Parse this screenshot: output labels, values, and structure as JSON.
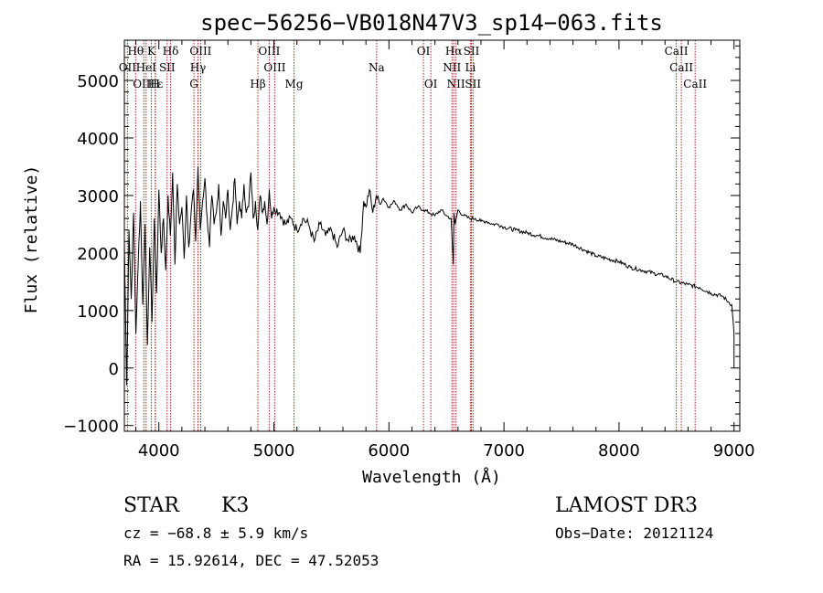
{
  "chart_data": {
    "type": "line",
    "title": "spec−56256−VB018N47V3_sp14−063.fits",
    "xlabel": "Wavelength (Å)",
    "ylabel": "Flux (relative)",
    "xlim": [
      3700,
      9050
    ],
    "ylim": [
      -1100,
      5700
    ],
    "xticks": [
      4000,
      5000,
      6000,
      7000,
      8000,
      9000
    ],
    "xtick_labels": [
      "4000",
      "5000",
      "6000",
      "7000",
      "8000",
      "9000"
    ],
    "yticks": [
      -1000,
      0,
      1000,
      2000,
      3000,
      4000,
      5000
    ],
    "ytick_labels": [
      "−1000",
      "0",
      "1000",
      "2000",
      "3000",
      "4000",
      "5000"
    ],
    "series": [
      {
        "name": "spectrum",
        "x": [
          3700,
          3720,
          3740,
          3760,
          3780,
          3800,
          3820,
          3840,
          3860,
          3880,
          3900,
          3920,
          3940,
          3960,
          3980,
          4000,
          4020,
          4040,
          4060,
          4080,
          4100,
          4120,
          4140,
          4160,
          4180,
          4200,
          4220,
          4240,
          4260,
          4280,
          4300,
          4320,
          4340,
          4360,
          4380,
          4400,
          4420,
          4440,
          4460,
          4480,
          4500,
          4520,
          4540,
          4560,
          4580,
          4600,
          4620,
          4640,
          4660,
          4680,
          4700,
          4720,
          4740,
          4760,
          4780,
          4800,
          4820,
          4840,
          4860,
          4880,
          4900,
          4920,
          4940,
          4960,
          4980,
          5000,
          5050,
          5100,
          5150,
          5200,
          5250,
          5300,
          5350,
          5400,
          5450,
          5500,
          5550,
          5600,
          5650,
          5700,
          5750,
          5780,
          5800,
          5830,
          5860,
          5890,
          5920,
          5950,
          6000,
          6050,
          6100,
          6150,
          6200,
          6250,
          6300,
          6350,
          6400,
          6450,
          6500,
          6540,
          6560,
          6565,
          6575,
          6600,
          6650,
          6700,
          6750,
          6800,
          6850,
          6900,
          6950,
          7000,
          7100,
          7200,
          7300,
          7400,
          7500,
          7600,
          7700,
          7800,
          7900,
          8000,
          8100,
          8200,
          8300,
          8400,
          8500,
          8600,
          8700,
          8800,
          8900,
          8950,
          8980,
          9000
        ],
        "values": [
          2200,
          -300,
          2400,
          1200,
          2700,
          600,
          1800,
          2900,
          1100,
          2500,
          400,
          2100,
          800,
          2600,
          1300,
          3100,
          2000,
          2600,
          1700,
          3000,
          2300,
          3400,
          1800,
          3200,
          2500,
          2800,
          1900,
          3000,
          2100,
          2700,
          3100,
          2200,
          3500,
          2400,
          2900,
          3300,
          2600,
          2100,
          3000,
          2500,
          2700,
          3200,
          2300,
          2900,
          2600,
          3100,
          2400,
          2800,
          3300,
          2500,
          2900,
          2600,
          3200,
          2700,
          2800,
          3400,
          2600,
          2900,
          2400,
          3000,
          2700,
          2900,
          2500,
          3100,
          2600,
          2800,
          2700,
          2500,
          2600,
          2400,
          2600,
          2500,
          2200,
          2500,
          2300,
          2400,
          2100,
          2400,
          2200,
          2300,
          2000,
          2900,
          2800,
          3100,
          2700,
          3000,
          2850,
          2950,
          2800,
          2900,
          2750,
          2850,
          2700,
          2800,
          2750,
          2700,
          2650,
          2750,
          2650,
          2600,
          1800,
          2700,
          2500,
          2750,
          2650,
          2600,
          2600,
          2550,
          2550,
          2500,
          2500,
          2450,
          2400,
          2350,
          2300,
          2250,
          2200,
          2150,
          2050,
          1950,
          1900,
          1850,
          1750,
          1700,
          1650,
          1600,
          1500,
          1450,
          1400,
          1300,
          1250,
          1150,
          1100,
          600
        ]
      }
    ],
    "line_annotations": [
      {
        "name": "Htheta",
        "label": "Hθ",
        "x": 3798,
        "row": 1
      },
      {
        "name": "K",
        "label": "K",
        "x": 3934,
        "row": 1
      },
      {
        "name": "Hdelta",
        "label": "Hδ",
        "x": 4102,
        "row": 1
      },
      {
        "name": "OIII-4363",
        "label": "OIII",
        "x": 4363,
        "row": 1
      },
      {
        "name": "OIII-4959",
        "label": "OIII",
        "x": 4959,
        "row": 1
      },
      {
        "name": "OI-6300",
        "label": "OI",
        "x": 6300,
        "row": 1
      },
      {
        "name": "Halpha",
        "label": "Hα",
        "x": 6563,
        "row": 1
      },
      {
        "name": "SII-6717",
        "label": "SII",
        "x": 6717,
        "row": 1
      },
      {
        "name": "CaII-8498",
        "label": "CaII",
        "x": 8498,
        "row": 1
      },
      {
        "name": "OII",
        "label": "OII",
        "x": 3727,
        "row": 2
      },
      {
        "name": "HeI",
        "label": "HeI",
        "x": 3889,
        "row": 2
      },
      {
        "name": "SII-4072",
        "label": "SII",
        "x": 4072,
        "row": 2
      },
      {
        "name": "Hgamma",
        "label": "Hγ",
        "x": 4340,
        "row": 2
      },
      {
        "name": "OIII-5007",
        "label": "OIII",
        "x": 5007,
        "row": 2
      },
      {
        "name": "Na",
        "label": "Na",
        "x": 5893,
        "row": 2
      },
      {
        "name": "NII-6548",
        "label": "NII",
        "x": 6548,
        "row": 2
      },
      {
        "name": "Li",
        "label": "Li",
        "x": 6708,
        "row": 2
      },
      {
        "name": "CaII-8542",
        "label": "CaII",
        "x": 8542,
        "row": 2
      },
      {
        "name": "OIII-3869",
        "label": "OIII",
        "x": 3869,
        "row": 3
      },
      {
        "name": "Heps",
        "label": "Hε",
        "x": 3970,
        "row": 3
      },
      {
        "name": "H",
        "label": "H",
        "x": 3968,
        "row": 3
      },
      {
        "name": "G",
        "label": "G",
        "x": 4305,
        "row": 3
      },
      {
        "name": "Hbeta",
        "label": "Hβ",
        "x": 4861,
        "row": 3
      },
      {
        "name": "Mg",
        "label": "Mg",
        "x": 5175,
        "row": 3
      },
      {
        "name": "OI-6364",
        "label": "OI",
        "x": 6364,
        "row": 3
      },
      {
        "name": "NII-6583",
        "label": "NII",
        "x": 6583,
        "row": 3
      },
      {
        "name": "SII-6731",
        "label": "SII",
        "x": 6731,
        "row": 3
      },
      {
        "name": "CaII-8662",
        "label": "CaII",
        "x": 8662,
        "row": 3
      }
    ]
  },
  "info": {
    "class": "STAR",
    "subclass": "K3",
    "survey": "LAMOST DR3",
    "cz": "cz = −68.8 ± 5.9 km/s",
    "obs_date": "Obs−Date: 20121124",
    "radec": "RA =  15.92614, DEC =  47.52053"
  },
  "colors": {
    "line_marker": "#b22222",
    "spectrum": "#000000"
  }
}
